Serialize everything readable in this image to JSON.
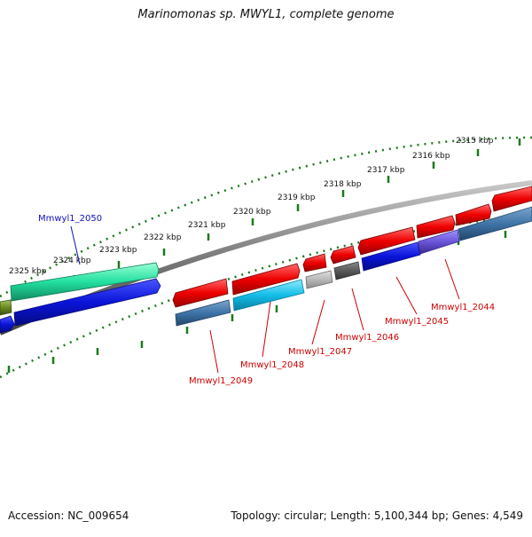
{
  "title": "Marinomonas sp. MWYL1, complete genome",
  "footer": {
    "accession": "Accession: NC_009654",
    "summary": "Topology: circular; Length: 5,100,344 bp; Genes: 4,549"
  },
  "ticks": [
    "2315 kbp",
    "2316 kbp",
    "2317 kbp",
    "2318 kbp",
    "2319 kbp",
    "2320 kbp",
    "2321 kbp",
    "2322 kbp",
    "2323 kbp",
    "2324 kbp",
    "2325 kbp"
  ],
  "gene_labels": {
    "top": "Mmwyl1_2050",
    "bottom": [
      "Mmwyl1_2049",
      "Mmwyl1_2048",
      "Mmwyl1_2047",
      "Mmwyl1_2046",
      "Mmwyl1_2045",
      "Mmwyl1_2044"
    ]
  },
  "colors": {
    "forward_gene": "#e8000b",
    "blue_gene": "#0a14d8",
    "steel_gene": "#3f74a8",
    "cyan_gene": "#12bde8",
    "mint_gene": "#22e0a0",
    "label_red": "#cc0000",
    "label_blue": "#1010c0",
    "tick_green": "#1a7a1a",
    "backbone": "#808080"
  }
}
